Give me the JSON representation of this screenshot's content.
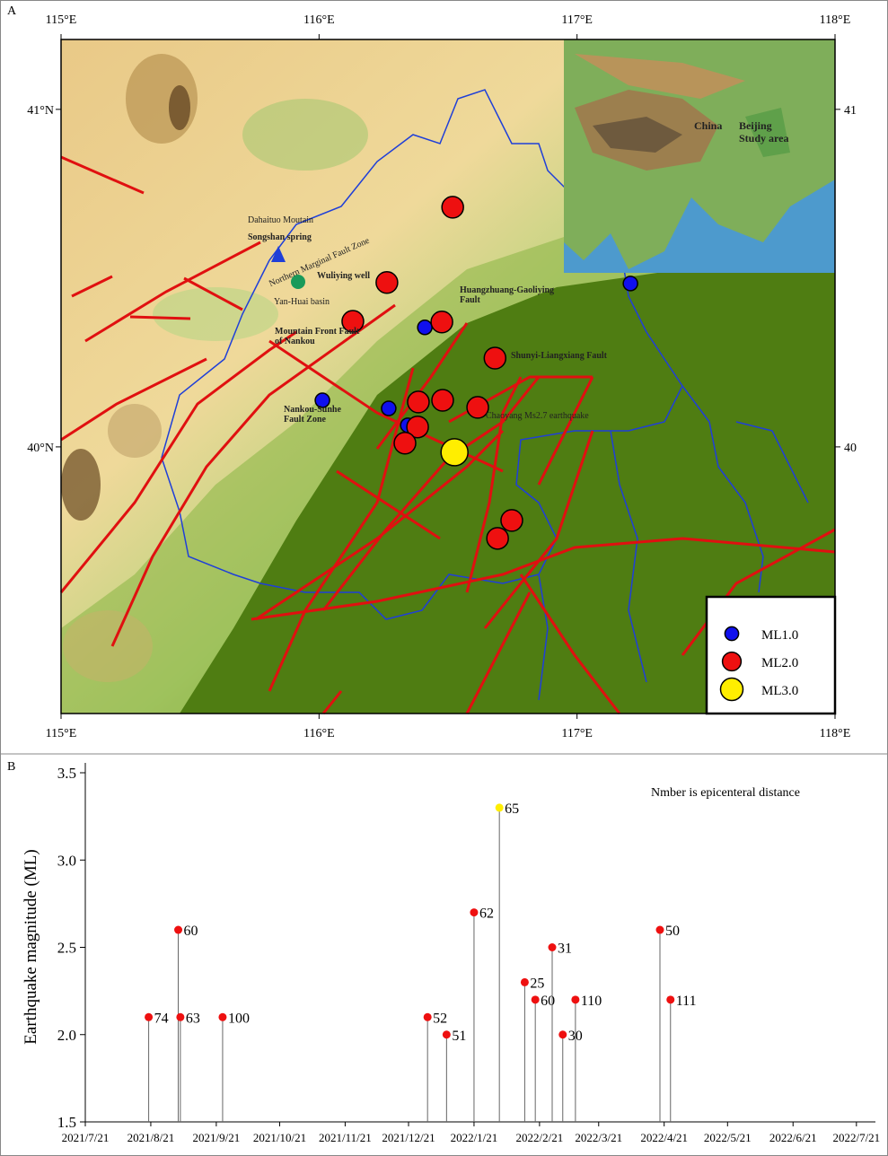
{
  "chart_data": [
    {
      "type": "map",
      "panel": "A",
      "xlim": [
        115,
        118
      ],
      "xticks": [
        {
          "value": 115,
          "label": "115°E"
        },
        {
          "value": 116,
          "label": "116°E"
        },
        {
          "value": 117,
          "label": "117°E"
        },
        {
          "value": 118,
          "label": "118°E"
        }
      ],
      "ylim": [
        39.21,
        41.207
      ],
      "yticks": [
        {
          "value": 41,
          "label": "41°N"
        },
        {
          "value": 40,
          "label": "40°N"
        }
      ],
      "y2lim": [
        39.21,
        41.207
      ],
      "y2ticks": [
        41,
        40
      ],
      "series": [
        {
          "name": "ML1.0",
          "color": "#1010ee",
          "x": [
            117.207,
            116.41,
            116.013,
            116.27,
            116.344
          ],
          "values": [
            40.484,
            40.354,
            40.138,
            40.114,
            40.064
          ]
        },
        {
          "name": "ML2.0",
          "color": "#ee1010",
          "x": [
            116.518,
            116.263,
            116.131,
            116.476,
            116.682,
            116.385,
            116.479,
            116.615,
            116.382,
            116.333,
            116.747,
            116.692
          ],
          "values": [
            40.71,
            40.487,
            40.372,
            40.37,
            40.263,
            40.133,
            40.138,
            40.117,
            40.059,
            40.011,
            39.782,
            39.729
          ]
        },
        {
          "name": "ML3.0",
          "color": "#ffee00",
          "x": [
            116.525
          ],
          "values": [
            39.984
          ]
        }
      ],
      "annotations": [
        "Dahaituo Moutain",
        "Songshan spring",
        "Northern Marginal Fault Zone",
        "Wuliying well",
        "Yan-Huai basin",
        "Huangzhuang-Gaoliying Fault",
        "Mountain Front Fault of Nankou",
        "Shunyi-Liangxiang Fault",
        "Nankou-Sunhe Fault Zone",
        "Chaoyang Ms2.7 earthquake",
        "China",
        "Beijing",
        "Study area"
      ]
    },
    {
      "type": "stem",
      "panel": "B",
      "ylabel": "Earthquake magnitude (ML)",
      "annotation": "Nmber is epicenteral distance",
      "x": [
        "2021/8/20",
        "2021/9/3",
        "2021/9/4",
        "2021/9/24",
        "2021/12/30",
        "2022/1/8",
        "2022/1/21",
        "2022/2/2",
        "2022/2/14",
        "2022/2/19",
        "2022/2/27",
        "2022/3/4",
        "2022/3/10",
        "2022/4/19",
        "2022/4/24"
      ],
      "values": [
        2.1,
        2.6,
        2.1,
        2.1,
        2.1,
        2.0,
        2.7,
        3.3,
        2.3,
        2.2,
        2.5,
        2.0,
        2.2,
        2.6,
        2.2
      ],
      "distances": [
        74,
        60,
        63,
        100,
        52,
        51,
        62,
        65,
        25,
        60,
        31,
        30,
        110,
        50,
        111
      ],
      "colors": [
        "#ee1010",
        "#ee1010",
        "#ee1010",
        "#ee1010",
        "#ee1010",
        "#ee1010",
        "#ee1010",
        "#ffee00",
        "#ee1010",
        "#ee1010",
        "#ee1010",
        "#ee1010",
        "#ee1010",
        "#ee1010",
        "#ee1010"
      ],
      "xlim": [
        "2021/7/21",
        "2022/7/30"
      ],
      "xticks": [
        "2021/7/21",
        "2021/8/21",
        "2021/9/21",
        "2021/10/21",
        "2021/11/21",
        "2021/12/21",
        "2022/1/21",
        "2022/2/21",
        "2022/3/21",
        "2022/4/21",
        "2022/5/21",
        "2022/6/21",
        "2022/7/21"
      ],
      "ylim": [
        1.5,
        3.5
      ],
      "yticks": [
        1.5,
        {
          "value": 2,
          "label": "2.0"
        },
        2.5,
        {
          "value": 3,
          "label": "3.0"
        },
        3.5
      ]
    }
  ]
}
